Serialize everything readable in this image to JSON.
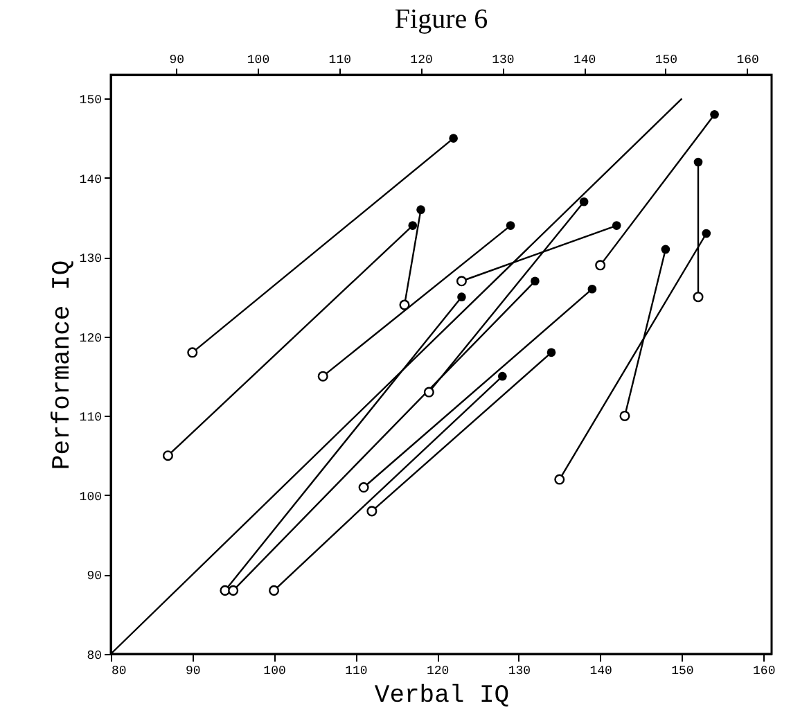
{
  "chart_data": {
    "type": "line",
    "title": "Figure 6",
    "xlabel": "Verbal IQ",
    "ylabel": "Performance IQ",
    "xlim": [
      80,
      161
    ],
    "xticks": [
      80,
      90,
      100,
      110,
      120,
      130,
      140,
      150,
      160
    ],
    "x2lim": [
      82,
      163
    ],
    "x2ticks": [
      90,
      100,
      110,
      120,
      130,
      140,
      150,
      160
    ],
    "ylim": [
      80,
      153
    ],
    "yticks": [
      80,
      90,
      100,
      110,
      120,
      130,
      140,
      150
    ],
    "grid": false,
    "marker": "circle",
    "series": [
      {
        "color": "#000000",
        "marker": "none",
        "x": [
          80,
          150
        ],
        "values": [
          80,
          150
        ]
      },
      {
        "color": "#000000",
        "x": [
          90,
          122
        ],
        "values": [
          118,
          145
        ]
      },
      {
        "color": "#000000",
        "x": [
          87,
          117
        ],
        "values": [
          105,
          134
        ]
      },
      {
        "color": "#000000",
        "x": [
          116,
          118
        ],
        "values": [
          124,
          136
        ]
      },
      {
        "color": "#000000",
        "x": [
          123,
          142
        ],
        "values": [
          127,
          134
        ]
      },
      {
        "color": "#000000",
        "x": [
          106,
          129
        ],
        "values": [
          115,
          134
        ]
      },
      {
        "color": "#000000",
        "x": [
          140,
          154
        ],
        "values": [
          129,
          148
        ]
      },
      {
        "color": "#000000",
        "x": [
          152,
          152
        ],
        "values": [
          125,
          142
        ]
      },
      {
        "color": "#000000",
        "x": [
          135,
          153
        ],
        "values": [
          102,
          133
        ]
      },
      {
        "color": "#000000",
        "x": [
          143,
          148
        ],
        "values": [
          110,
          131
        ]
      },
      {
        "color": "#000000",
        "x": [
          94,
          123
        ],
        "values": [
          88,
          125
        ]
      },
      {
        "color": "#000000",
        "x": [
          95,
          132
        ],
        "values": [
          88,
          127
        ]
      },
      {
        "color": "#000000",
        "x": [
          100,
          128
        ],
        "values": [
          88,
          115
        ]
      },
      {
        "color": "#000000",
        "x": [
          111,
          139
        ],
        "values": [
          101,
          126
        ]
      },
      {
        "color": "#000000",
        "x": [
          112,
          134
        ],
        "values": [
          98,
          118
        ]
      },
      {
        "color": "#000000",
        "x": [
          119,
          138
        ],
        "values": [
          113,
          137
        ]
      }
    ]
  }
}
